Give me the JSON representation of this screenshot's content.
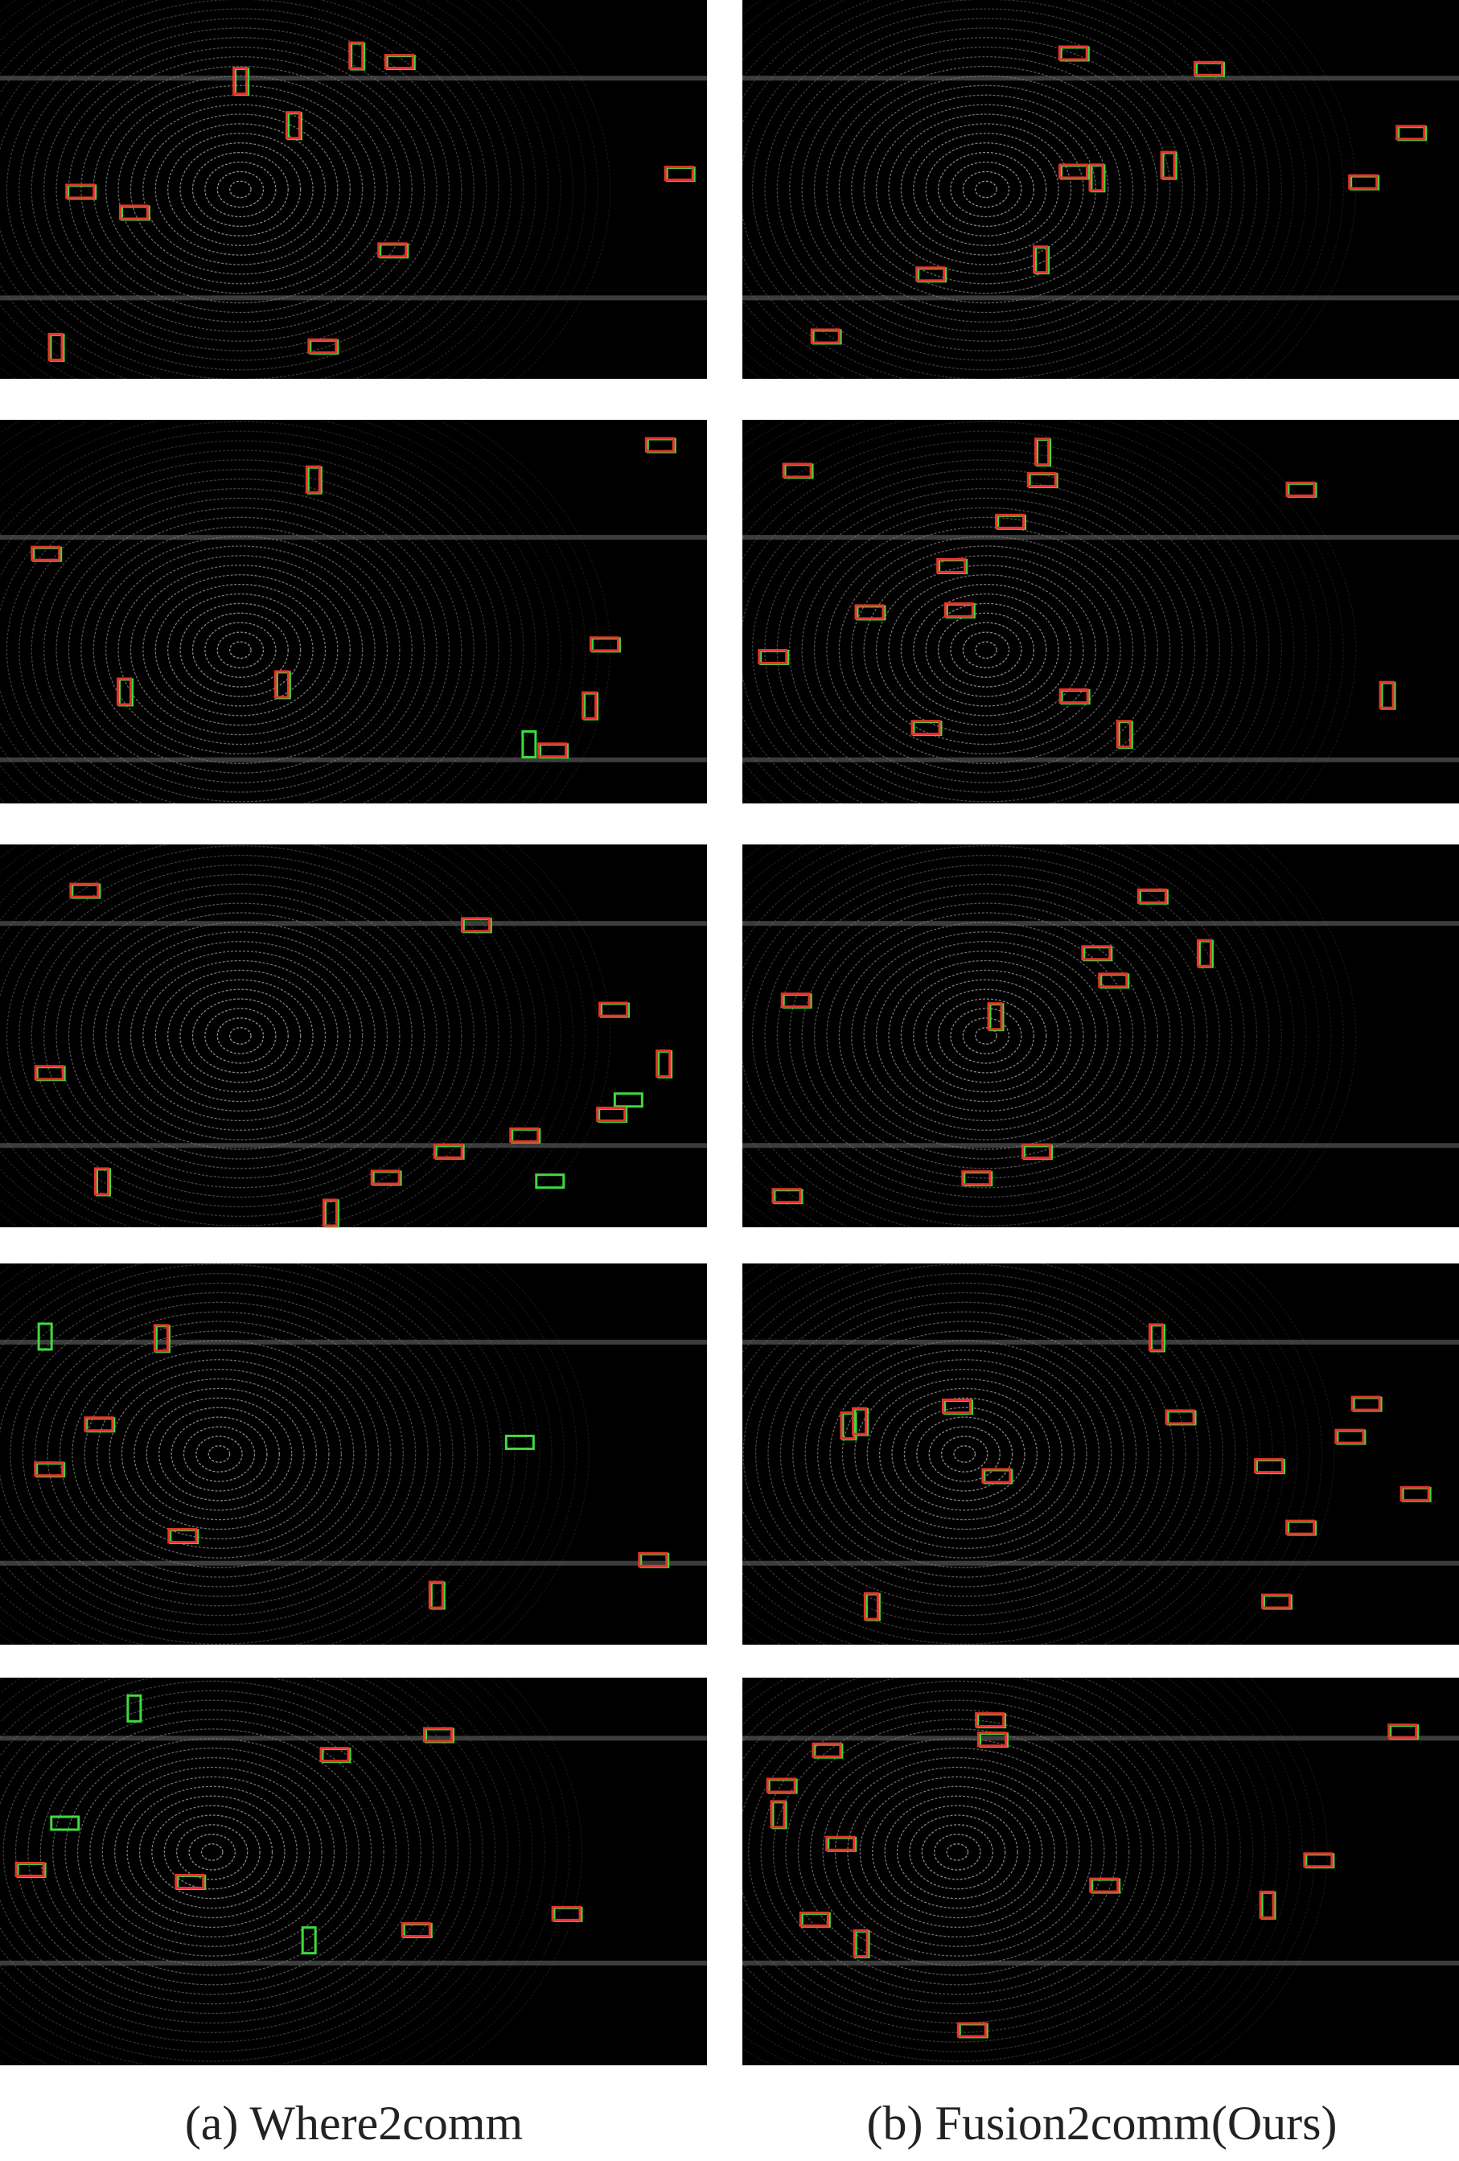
{
  "captions": [
    "(a) Where2comm",
    "(b) Fusion2comm(Ours)"
  ]
}
